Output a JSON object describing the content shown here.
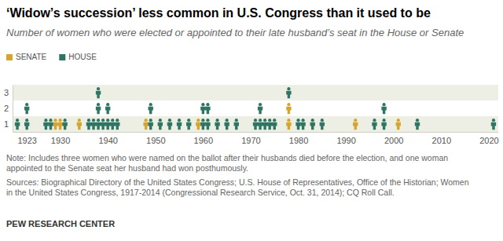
{
  "chart_data": {
    "type": "scatter",
    "title": "‘Widow’s succession’ less common in U.S. Congress than it used to be",
    "subtitle": "Number of women who were elected or appointed to their late husband’s seat in the House or Senate",
    "marker": "person",
    "legend": "top-left",
    "grid": false,
    "xlim": [
      1920,
      2022
    ],
    "xticks": [
      1923,
      1930,
      1940,
      1950,
      1960,
      1970,
      1980,
      1990,
      2000,
      2010,
      2020
    ],
    "ylim": [
      0.5,
      3.5
    ],
    "yticks": [
      1,
      2,
      3
    ],
    "series": [
      {
        "name": "SENATE",
        "color": "#d6a62c",
        "x": [
          1929,
          1930,
          1934,
          1948,
          1959,
          1978,
          1978,
          1992,
          2001
        ],
        "values": [
          1,
          1,
          1,
          1,
          1,
          1,
          2,
          1,
          1
        ]
      },
      {
        "name": "HOUSE",
        "color": "#2e7563",
        "x": [
          1921,
          1923,
          1923,
          1927,
          1928,
          1931,
          1936,
          1937,
          1938,
          1938,
          1938,
          1939,
          1940,
          1940,
          1941,
          1942,
          1949,
          1949,
          1951,
          1953,
          1955,
          1957,
          1960,
          1960,
          1961,
          1961,
          1963,
          1965,
          1967,
          1971,
          1972,
          1972,
          1973,
          1974,
          1975,
          1978,
          1980,
          1981,
          1983,
          1985,
          1996,
          1998,
          1998,
          2005,
          2021
        ],
        "values": [
          1,
          1,
          2,
          1,
          1,
          1,
          1,
          1,
          1,
          2,
          3,
          1,
          1,
          2,
          1,
          1,
          1,
          2,
          1,
          1,
          1,
          1,
          1,
          2,
          1,
          2,
          1,
          1,
          1,
          1,
          1,
          2,
          1,
          1,
          1,
          3,
          1,
          1,
          1,
          1,
          1,
          1,
          2,
          1,
          1
        ]
      }
    ],
    "note": [
      "Note: Includes three women who were named on the ballot after their husbands died before the election, and one woman",
      "appointed to the Senate seat her husband had won posthumously."
    ],
    "sources": [
      "Sources: Biographical Directory of the United States Congress; U.S. House of Representatives, Office of the Historian; Women",
      "in the United States Congress, 1917-2014 (Congressional Research Service, Oct. 31, 2014); CQ Roll Call."
    ],
    "credit": "PEW RESEARCH CENTER"
  }
}
